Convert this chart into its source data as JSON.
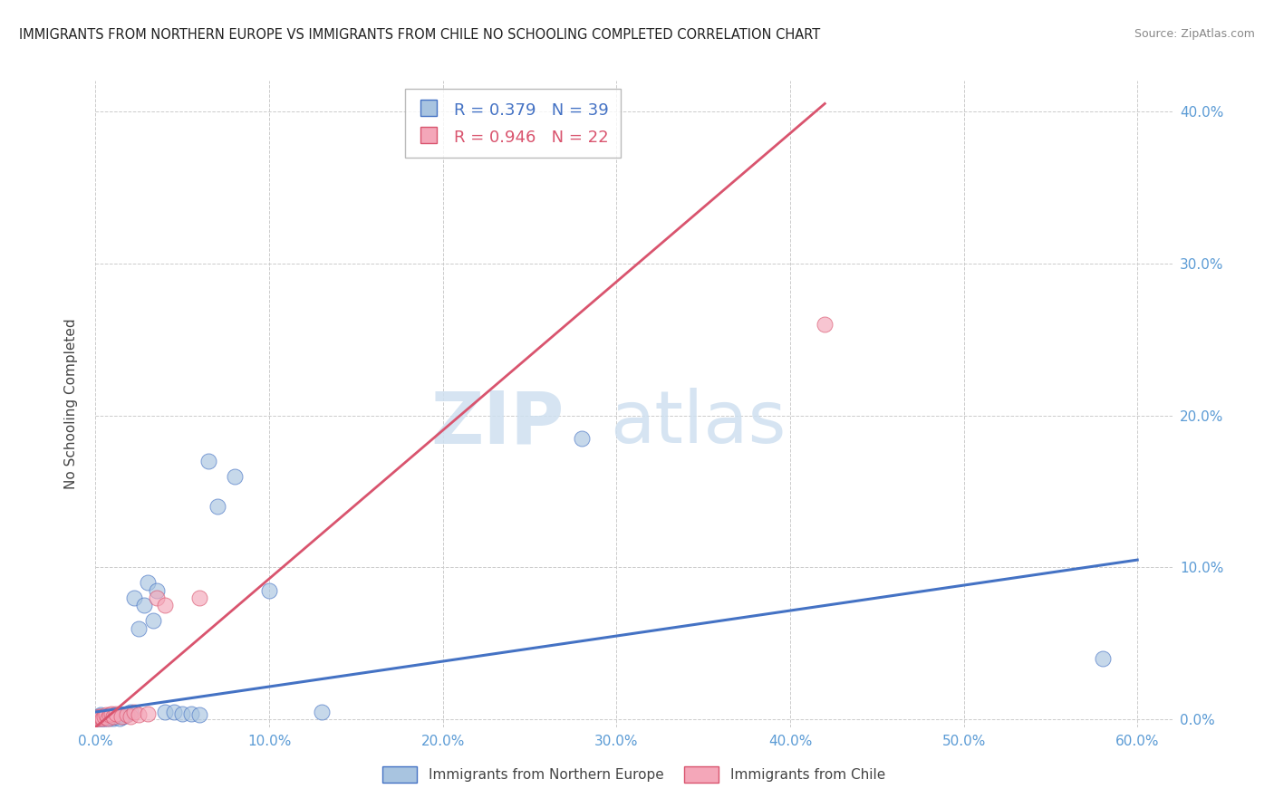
{
  "title": "IMMIGRANTS FROM NORTHERN EUROPE VS IMMIGRANTS FROM CHILE NO SCHOOLING COMPLETED CORRELATION CHART",
  "source": "Source: ZipAtlas.com",
  "ylabel_left": "No Schooling Completed",
  "legend_label1": "Immigrants from Northern Europe",
  "legend_label2": "Immigrants from Chile",
  "R1": 0.379,
  "N1": 39,
  "R2": 0.946,
  "N2": 22,
  "color1": "#a8c4e0",
  "color1_line": "#4472c4",
  "color2": "#f4a7b9",
  "color2_line": "#d9546e",
  "axis_color": "#5b9bd5",
  "xlim": [
    0.0,
    0.62
  ],
  "ylim": [
    -0.005,
    0.42
  ],
  "xticks": [
    0.0,
    0.1,
    0.2,
    0.3,
    0.4,
    0.5,
    0.6
  ],
  "yticks_right": [
    0.0,
    0.1,
    0.2,
    0.3,
    0.4
  ],
  "scatter1_x": [
    0.001,
    0.002,
    0.002,
    0.003,
    0.003,
    0.004,
    0.005,
    0.005,
    0.006,
    0.007,
    0.008,
    0.009,
    0.01,
    0.011,
    0.012,
    0.013,
    0.014,
    0.015,
    0.016,
    0.018,
    0.02,
    0.022,
    0.025,
    0.028,
    0.03,
    0.033,
    0.035,
    0.04,
    0.045,
    0.05,
    0.055,
    0.06,
    0.065,
    0.07,
    0.08,
    0.1,
    0.13,
    0.28,
    0.58
  ],
  "scatter1_y": [
    0.001,
    0.002,
    0.001,
    0.001,
    0.003,
    0.001,
    0.001,
    0.002,
    0.001,
    0.002,
    0.001,
    0.002,
    0.001,
    0.003,
    0.002,
    0.003,
    0.001,
    0.003,
    0.002,
    0.004,
    0.005,
    0.08,
    0.06,
    0.075,
    0.09,
    0.065,
    0.085,
    0.005,
    0.005,
    0.004,
    0.004,
    0.003,
    0.17,
    0.14,
    0.16,
    0.085,
    0.005,
    0.185,
    0.04
  ],
  "scatter2_x": [
    0.001,
    0.002,
    0.002,
    0.003,
    0.004,
    0.005,
    0.006,
    0.007,
    0.008,
    0.009,
    0.01,
    0.012,
    0.015,
    0.018,
    0.02,
    0.022,
    0.025,
    0.03,
    0.035,
    0.04,
    0.06,
    0.42
  ],
  "scatter2_y": [
    0.001,
    0.001,
    0.002,
    0.002,
    0.001,
    0.002,
    0.003,
    0.001,
    0.003,
    0.004,
    0.002,
    0.004,
    0.002,
    0.003,
    0.002,
    0.005,
    0.003,
    0.004,
    0.08,
    0.075,
    0.08,
    0.26
  ],
  "line1_x0": 0.0,
  "line1_y0": 0.005,
  "line1_x1": 0.6,
  "line1_y1": 0.105,
  "line2_x0": 0.0,
  "line2_y0": -0.005,
  "line2_x1": 0.42,
  "line2_y1": 0.405,
  "watermark_zip": "ZIP",
  "watermark_atlas": "atlas",
  "background_color": "#ffffff",
  "grid_color": "#cccccc"
}
